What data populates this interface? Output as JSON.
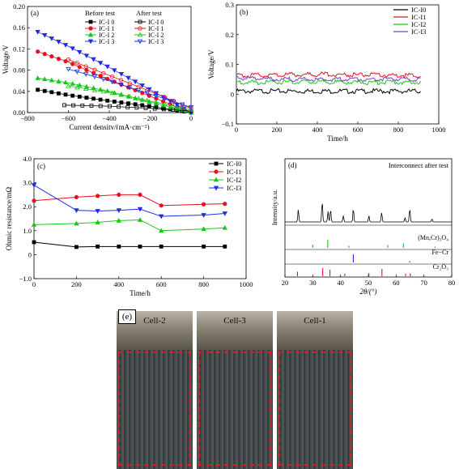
{
  "colors": {
    "black": "#000000",
    "red": "#e8121e",
    "green": "#19c71a",
    "blue": "#1e2ce8",
    "purple": "#7b3fc0"
  },
  "chart_data": [
    {
      "panel": "(a)",
      "type": "line",
      "xlabel": "Current density/(mA·cm⁻²)",
      "ylabel": "Voltage/V",
      "xlim": [
        -800,
        0
      ],
      "ylim": [
        0,
        0.2
      ],
      "xticks": [
        "−800",
        "−600",
        "−400",
        "−200",
        "0"
      ],
      "yticks": [
        "0.00",
        "0.04",
        "0.08",
        "0.12",
        "0.16",
        "0.20"
      ],
      "legend_headers": [
        "Before test",
        "After test"
      ],
      "series": [
        {
          "name": "IC-I 0",
          "group": "Before test",
          "color": "#000000",
          "x": [
            -750,
            -600,
            -400,
            -200,
            0
          ],
          "y": [
            0.043,
            0.033,
            0.022,
            0.012,
            0.0
          ]
        },
        {
          "name": "IC-I 1",
          "group": "Before test",
          "color": "#e8121e",
          "x": [
            -750,
            -600,
            -400,
            -200,
            0
          ],
          "y": [
            0.115,
            0.095,
            0.062,
            0.031,
            0.0
          ]
        },
        {
          "name": "IC-I 2",
          "group": "Before test",
          "color": "#19c71a",
          "x": [
            -750,
            -600,
            -400,
            -200,
            0
          ],
          "y": [
            0.065,
            0.056,
            0.04,
            0.02,
            0.0
          ]
        },
        {
          "name": "IC-I 3",
          "group": "Before test",
          "color": "#1e2ce8",
          "x": [
            -750,
            -600,
            -400,
            -200,
            0
          ],
          "y": [
            0.152,
            0.125,
            0.085,
            0.043,
            0.0
          ]
        },
        {
          "name": "IC-I 0",
          "group": "After test",
          "color": "#000000",
          "x": [
            -620,
            -500,
            -400,
            -200,
            0
          ],
          "y": [
            0.014,
            0.013,
            0.012,
            0.008,
            0.003
          ]
        },
        {
          "name": "IC-I 1",
          "group": "After test",
          "color": "#e8121e",
          "x": [
            -600,
            -400,
            -200,
            0
          ],
          "y": [
            0.1,
            0.07,
            0.04,
            0.008
          ]
        },
        {
          "name": "IC-I 2",
          "group": "After test",
          "color": "#19c71a",
          "x": [
            -600,
            -400,
            -200,
            0
          ],
          "y": [
            0.05,
            0.038,
            0.022,
            0.005
          ]
        },
        {
          "name": "IC-I 3",
          "group": "After test",
          "color": "#1e2ce8",
          "x": [
            -600,
            -400,
            -200,
            0
          ],
          "y": [
            0.082,
            0.06,
            0.035,
            0.01
          ]
        }
      ]
    },
    {
      "panel": "(b)",
      "type": "line",
      "xlabel": "Time/h",
      "ylabel": "Voltage/V",
      "xlim": [
        0,
        1000
      ],
      "ylim": [
        -0.1,
        0.3
      ],
      "xticks": [
        "0",
        "200",
        "400",
        "600",
        "800",
        "1000"
      ],
      "yticks": [
        "−0.1",
        "0",
        "0.1",
        "0.2",
        "0.3"
      ],
      "series": [
        {
          "name": "IC-I0",
          "color": "#000000",
          "x": [
            0,
            200,
            400,
            600,
            910
          ],
          "y": [
            0.01,
            0.01,
            0.01,
            0.01,
            0.01
          ]
        },
        {
          "name": "IC-I1",
          "color": "#e8121e",
          "x": [
            0,
            200,
            400,
            600,
            910
          ],
          "y": [
            0.062,
            0.065,
            0.067,
            0.065,
            0.062
          ]
        },
        {
          "name": "IC-I2",
          "color": "#19c71a",
          "x": [
            0,
            200,
            400,
            600,
            910
          ],
          "y": [
            0.04,
            0.04,
            0.042,
            0.04,
            0.04
          ]
        },
        {
          "name": "IC-I3",
          "color": "#7b3fc0",
          "x": [
            0,
            200,
            400,
            600,
            910
          ],
          "y": [
            0.055,
            0.05,
            0.05,
            0.05,
            0.05
          ]
        }
      ]
    },
    {
      "panel": "(c)",
      "type": "line",
      "xlabel": "Time/h",
      "ylabel": "Ohmic resistance/mΩ",
      "xlim": [
        0,
        1000
      ],
      "ylim": [
        -1.0,
        4.0
      ],
      "xticks": [
        "0",
        "200",
        "400",
        "600",
        "800",
        "1000"
      ],
      "yticks": [
        "−1.0",
        "0",
        "1.0",
        "2.0",
        "3.0",
        "4.0"
      ],
      "series": [
        {
          "name": "IC-I0",
          "color": "#000000",
          "x": [
            0,
            200,
            300,
            400,
            500,
            600,
            800,
            900
          ],
          "y": [
            0.52,
            0.32,
            0.34,
            0.34,
            0.34,
            0.34,
            0.34,
            0.34
          ]
        },
        {
          "name": "IC-I1",
          "color": "#e8121e",
          "x": [
            0,
            200,
            300,
            400,
            500,
            600,
            800,
            900
          ],
          "y": [
            2.25,
            2.4,
            2.45,
            2.5,
            2.5,
            2.05,
            2.1,
            2.12
          ]
        },
        {
          "name": "IC-I2",
          "color": "#19c71a",
          "x": [
            0,
            200,
            300,
            400,
            500,
            600,
            800,
            900
          ],
          "y": [
            1.25,
            1.3,
            1.35,
            1.42,
            1.45,
            1.0,
            1.07,
            1.12
          ]
        },
        {
          "name": "IC-I3",
          "color": "#1e2ce8",
          "x": [
            0,
            200,
            300,
            400,
            500,
            600,
            800,
            900
          ],
          "y": [
            2.9,
            1.85,
            1.82,
            1.85,
            1.9,
            1.6,
            1.65,
            1.72
          ]
        }
      ]
    },
    {
      "panel": "(d)",
      "type": "line",
      "title": "Interconnect after test",
      "xlabel": "2θ/(°)",
      "ylabel": "Intensity/a.u.",
      "xlim": [
        20,
        80
      ],
      "xticks": [
        "20",
        "30",
        "40",
        "50",
        "60",
        "70",
        "80"
      ],
      "pattern_peaks": [
        {
          "x": 24.8,
          "h": 0.6
        },
        {
          "x": 33.4,
          "h": 1.0
        },
        {
          "x": 35.5,
          "h": 0.5
        },
        {
          "x": 36.4,
          "h": 0.6
        },
        {
          "x": 41.0,
          "h": 0.3
        },
        {
          "x": 44.6,
          "h": 0.65
        },
        {
          "x": 50.2,
          "h": 0.3
        },
        {
          "x": 54.8,
          "h": 0.45
        },
        {
          "x": 63.2,
          "h": 0.2
        },
        {
          "x": 64.9,
          "h": 0.65
        },
        {
          "x": 72.9,
          "h": 0.15
        }
      ],
      "references": [
        {
          "name": "(Mn,Cr)₃O₄",
          "color": "#19c71a",
          "peaks": [
            {
              "x": 30.0,
              "h": 0.4
            },
            {
              "x": 35.4,
              "h": 1.0
            },
            {
              "x": 43.0,
              "h": 0.25
            },
            {
              "x": 57.0,
              "h": 0.35
            },
            {
              "x": 62.6,
              "h": 0.55
            },
            {
              "x": 74.0,
              "h": 0.15
            }
          ]
        },
        {
          "name": "Fe−Cr",
          "color": "#1e2ce8",
          "peaks": [
            {
              "x": 44.6,
              "h": 1.0
            },
            {
              "x": 64.9,
              "h": 0.15
            }
          ]
        },
        {
          "name": "Cr₂O₃",
          "color": "#e8121e",
          "peaks": [
            {
              "x": 24.5,
              "h": 0.55
            },
            {
              "x": 33.6,
              "h": 1.0
            },
            {
              "x": 36.2,
              "h": 0.8
            },
            {
              "x": 41.5,
              "h": 0.3
            },
            {
              "x": 50.2,
              "h": 0.4
            },
            {
              "x": 54.9,
              "h": 0.9
            },
            {
              "x": 63.4,
              "h": 0.3
            },
            {
              "x": 65.1,
              "h": 0.35
            }
          ]
        }
      ]
    }
  ],
  "panel_labels": {
    "a": "(a)",
    "b": "(b)",
    "c": "(c)",
    "d": "(d)",
    "e": "(e)"
  },
  "photos": [
    {
      "caption": "Cell-2"
    },
    {
      "caption": "Cell-3"
    },
    {
      "caption": "Cell-1"
    }
  ]
}
